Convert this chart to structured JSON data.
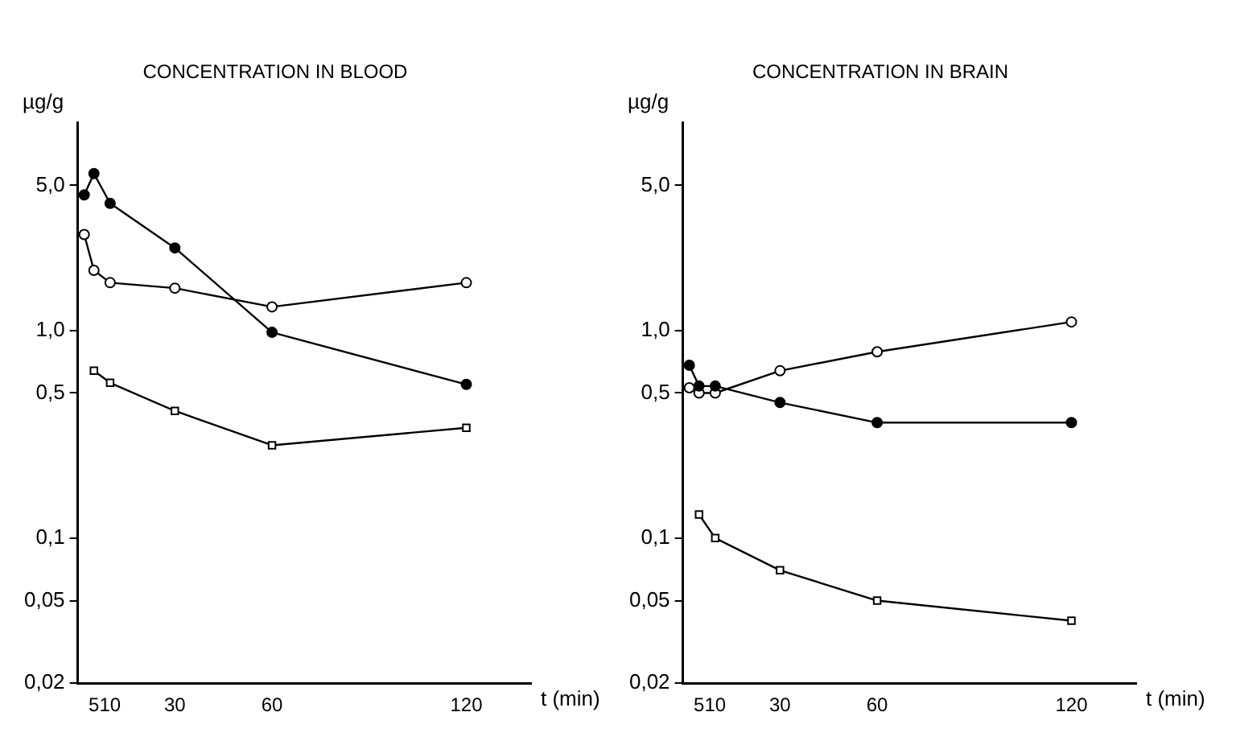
{
  "chart_data": [
    {
      "type": "line",
      "title": "CONCENTRATION IN BLOOD",
      "xlabel": "t (min)",
      "ylabel": "µg/g",
      "log": "y",
      "grid": false,
      "legend": false,
      "line_style": "solid",
      "xlim": [
        0,
        140
      ],
      "xticks": [
        5,
        10,
        30,
        60,
        120
      ],
      "ylim": [
        0.02,
        10
      ],
      "yticks": [
        {
          "value": 0.02,
          "label": "0,02"
        },
        {
          "value": 0.05,
          "label": "0,05"
        },
        {
          "value": 0.1,
          "label": "0,1"
        },
        {
          "value": 0.5,
          "label": "0,5"
        },
        {
          "value": 1,
          "label": "1,0"
        },
        {
          "value": 5,
          "label": "5,0"
        }
      ],
      "series": [
        {
          "color": "#000000",
          "marker": "circle",
          "x": [
            2,
            5,
            10,
            30,
            60,
            120
          ],
          "values": [
            4.5,
            5.7,
            4.1,
            2.5,
            0.98,
            0.55
          ]
        },
        {
          "color": "#000000",
          "marker": "circle",
          "x": [
            2,
            5,
            10,
            30,
            60,
            120
          ],
          "values": [
            2.9,
            1.95,
            1.7,
            1.6,
            1.3,
            1.7
          ]
        },
        {
          "color": "#000000",
          "marker": "square",
          "x": [
            5,
            10,
            30,
            60,
            120
          ],
          "values": [
            0.64,
            0.56,
            0.41,
            0.28,
            0.34
          ]
        }
      ]
    },
    {
      "type": "line",
      "title": "CONCENTRATION IN BRAIN",
      "xlabel": "t (min)",
      "ylabel": "µg/g",
      "log": "y",
      "grid": false,
      "legend": false,
      "line_style": "solid",
      "xlim": [
        0,
        140
      ],
      "xticks": [
        5,
        10,
        30,
        60,
        120
      ],
      "ylim": [
        0.02,
        10
      ],
      "yticks": [
        {
          "value": 0.02,
          "label": "0,02"
        },
        {
          "value": 0.05,
          "label": "0,05"
        },
        {
          "value": 0.1,
          "label": "0,1"
        },
        {
          "value": 0.5,
          "label": "0,5"
        },
        {
          "value": 1,
          "label": "1,0"
        },
        {
          "value": 5,
          "label": "5,0"
        }
      ],
      "series": [
        {
          "color": "#000000",
          "marker": "circle",
          "x": [
            2,
            5,
            10,
            30,
            60,
            120
          ],
          "values": [
            0.68,
            0.54,
            0.54,
            0.45,
            0.36,
            0.36
          ]
        },
        {
          "color": "#000000",
          "marker": "circle",
          "x": [
            2,
            5,
            10,
            30,
            60,
            120
          ],
          "values": [
            0.53,
            0.5,
            0.5,
            0.64,
            0.79,
            1.1
          ]
        },
        {
          "color": "#000000",
          "marker": "square",
          "x": [
            5,
            10,
            30,
            60,
            120
          ],
          "values": [
            0.13,
            0.1,
            0.07,
            0.05,
            0.04
          ]
        }
      ]
    }
  ]
}
